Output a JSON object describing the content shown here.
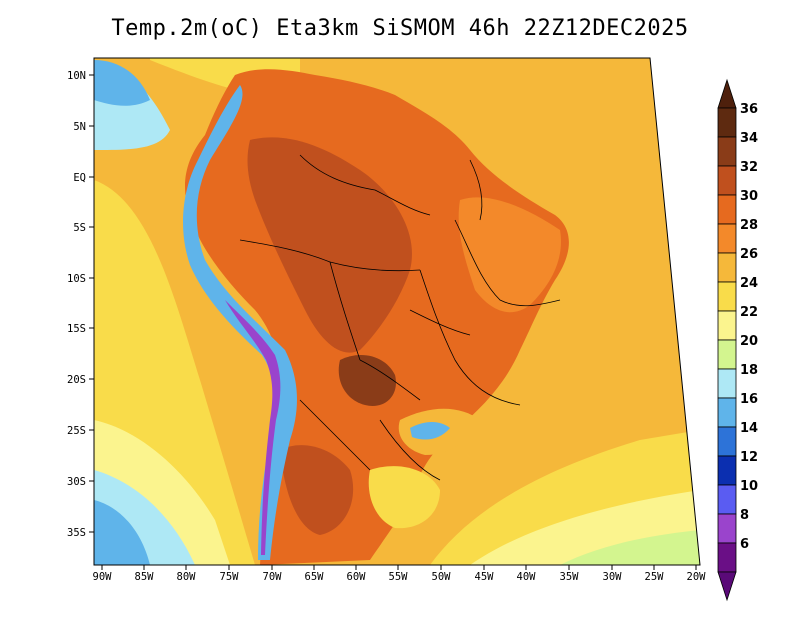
{
  "title": "Temp.2m(oC) Eta3km SiSMOM 46h 22Z12DEC2025",
  "lon_labels": [
    "90W",
    "85W",
    "80W",
    "75W",
    "70W",
    "65W",
    "60W",
    "55W",
    "50W",
    "45W",
    "40W",
    "35W",
    "30W",
    "25W",
    "20W"
  ],
  "lat_labels": [
    "10N",
    "5N",
    "EQ",
    "5S",
    "10S",
    "15S",
    "20S",
    "25S",
    "30S",
    "35S"
  ],
  "colorbar": {
    "labels": [
      "36",
      "34",
      "32",
      "30",
      "28",
      "26",
      "24",
      "22",
      "20",
      "18",
      "16",
      "14",
      "12",
      "10",
      "8",
      "6"
    ],
    "colors": [
      "#5e2a10",
      "#8a3c18",
      "#c0501e",
      "#e66a1f",
      "#f3892a",
      "#f5b83a",
      "#f9dc4a",
      "#fbf48e",
      "#d3f58f",
      "#aee8f5",
      "#5fb4ea",
      "#2d73d8",
      "#0b2fb0",
      "#5a5cf2",
      "#9a44cc",
      "#6a0f86"
    ],
    "top_arrow_color": "#4e200c",
    "bottom_arrow_color": "#5a0a78"
  },
  "background_colors": {
    "warm_ocean": "#f5b83a",
    "cool_ocean": "#fbf48e",
    "land_hot": "#e66a1f",
    "andes_cold": "#5fb4ea"
  }
}
